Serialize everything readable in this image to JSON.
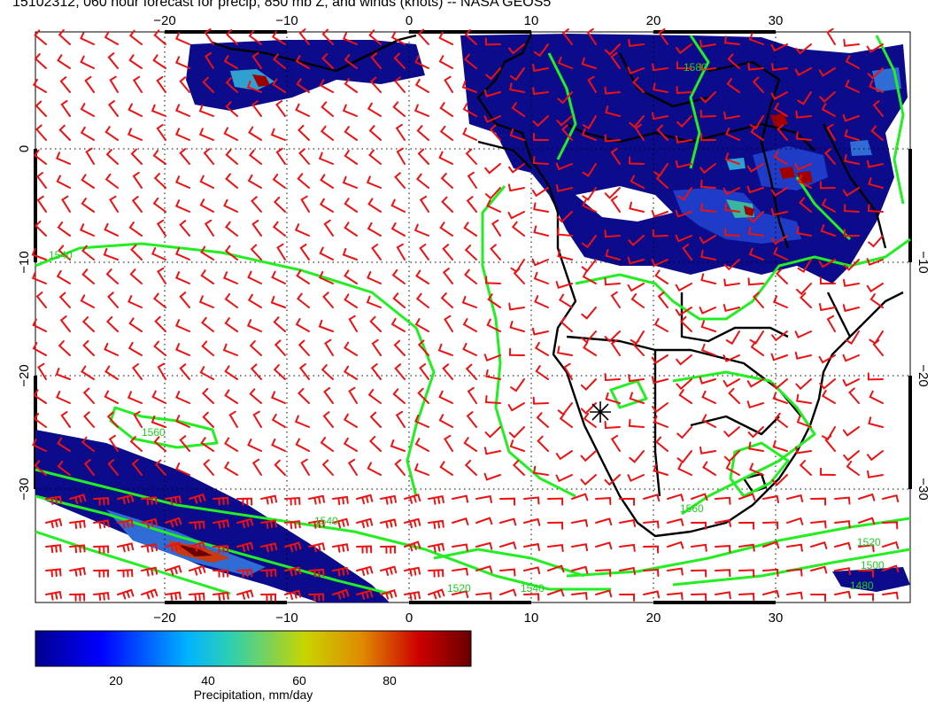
{
  "title": "15102312, 060 hour forecast for precip, 850 mb Z, and winds (knots) -- NASA GEOS5",
  "map": {
    "lon_ticks": [
      "−20",
      "−10",
      "0",
      "10",
      "20",
      "30"
    ],
    "lat_ticks": [
      "0",
      "−10",
      "−20",
      "−30"
    ],
    "contour_labels": [
      "1540",
      "1560",
      "1540",
      "1520",
      "1500",
      "1480",
      "1520",
      "1540",
      "1560",
      "1580"
    ],
    "colors": {
      "coast": "#000000",
      "contour": "#22ee22",
      "wind": "#ee1111",
      "precip_low": "#0b0b8c",
      "precip_high": "#7a0000"
    }
  },
  "colorbar": {
    "label": "Precipitation, mm/day",
    "ticks": [
      "20",
      "40",
      "60",
      "80"
    ],
    "tick_values": [
      20,
      40,
      60,
      80
    ],
    "range": [
      0,
      100
    ],
    "colors": [
      "#00008f",
      "#0000ff",
      "#00b4ff",
      "#2fd0b0",
      "#c8d400",
      "#e08a00",
      "#cc0000",
      "#6a0000"
    ]
  }
}
